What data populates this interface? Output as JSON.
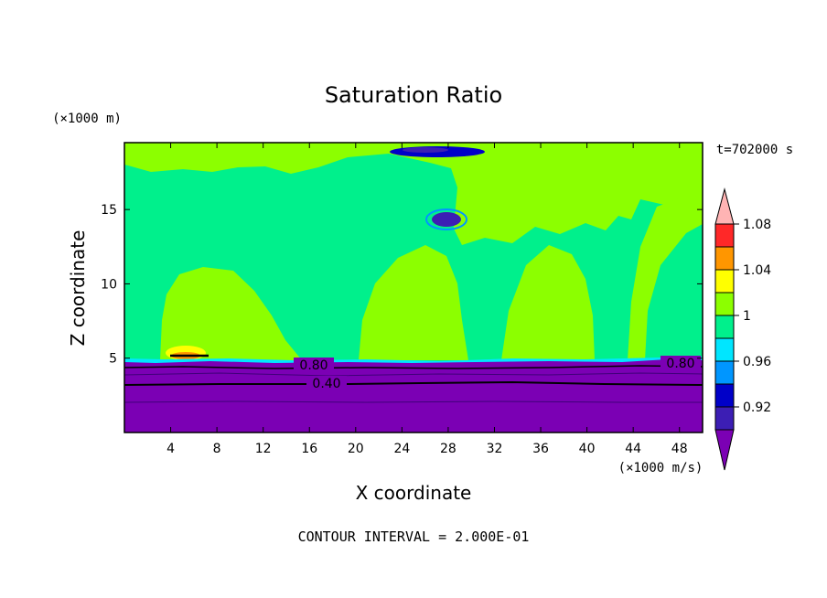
{
  "chart_data": {
    "type": "heatmap",
    "title": "Saturation Ratio",
    "xlabel": "X coordinate",
    "ylabel": "Z coordinate",
    "x_unit": "(×1000 m/s)",
    "y_unit": "(×1000 m)",
    "time_label": "t=702000 s",
    "footer": "CONTOUR INTERVAL = 2.000E-01",
    "xlim": [
      0,
      50
    ],
    "ylim": [
      0,
      19.5
    ],
    "x_ticks": [
      4,
      8,
      12,
      16,
      20,
      24,
      28,
      32,
      36,
      40,
      44,
      48
    ],
    "y_ticks": [
      5,
      10,
      15
    ],
    "contour_labels": [
      {
        "text": "0.80",
        "x": 16.2,
        "y": 4.6
      },
      {
        "text": "0.40",
        "x": 16.2,
        "y": 3.3
      },
      {
        "text": "0.80",
        "x": 46.2,
        "y": 4.9
      }
    ],
    "colorbar": {
      "levels": [
        {
          "label": "",
          "color": "#7b00b4"
        },
        {
          "label": "0.92",
          "color": "#3c1eb4"
        },
        {
          "label": "",
          "color": "#0000c8"
        },
        {
          "label": "0.96",
          "color": "#0096ff"
        },
        {
          "label": "",
          "color": "#00e6ff"
        },
        {
          "label": "1",
          "color": "#00f08c"
        },
        {
          "label": "",
          "color": "#8cff00"
        },
        {
          "label": "1.04",
          "color": "#ffff00"
        },
        {
          "label": "",
          "color": "#ff9600"
        },
        {
          "label": "1.08",
          "color": "#ff2828"
        },
        {
          "label": "",
          "color": "#ffb4b4"
        }
      ]
    },
    "colors": {
      "dry_layer": "#7b00b4",
      "moist": "#00f08c",
      "super_sat": "#8cff00"
    }
  }
}
